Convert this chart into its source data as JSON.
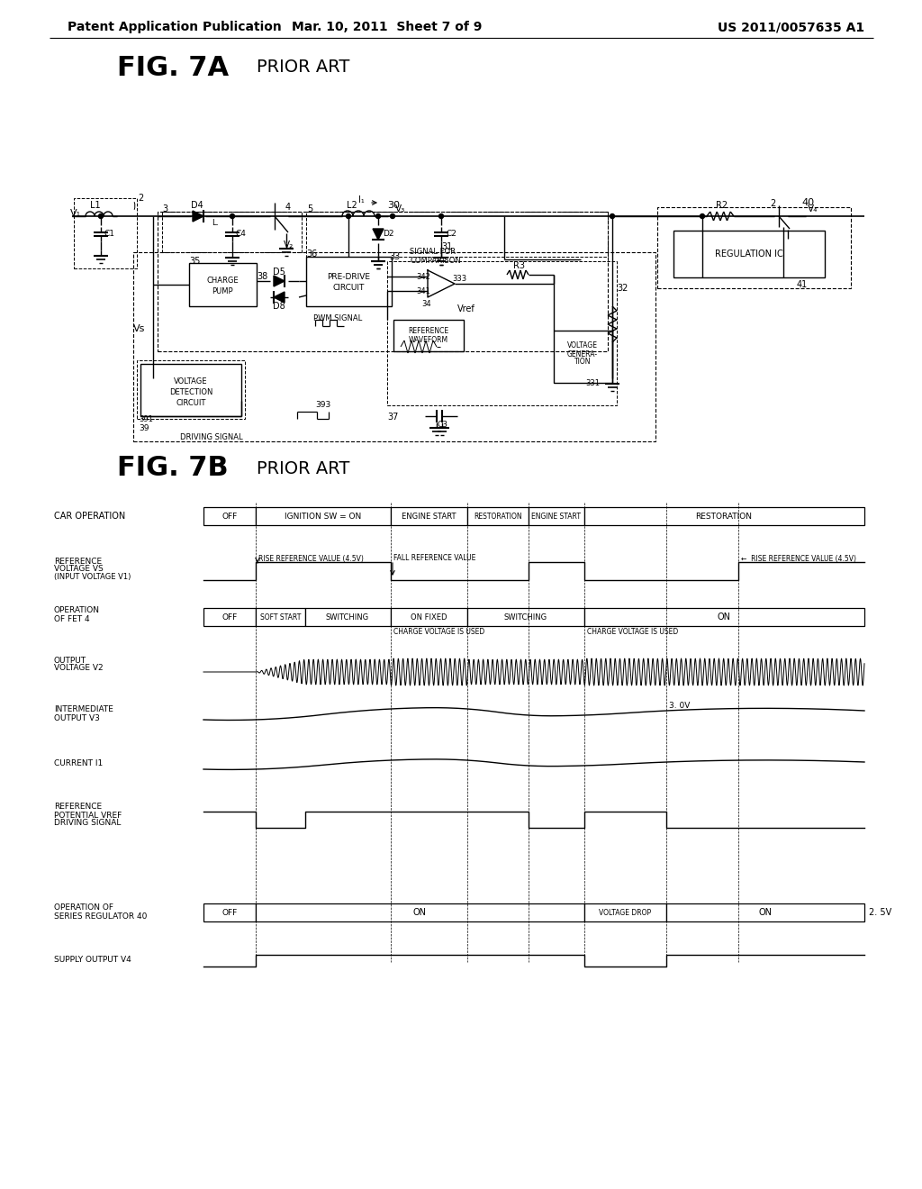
{
  "page_bg": "#ffffff",
  "header_left": "Patent Application Publication",
  "header_mid": "Mar. 10, 2011  Sheet 7 of 9",
  "header_right": "US 2011/0057635 A1",
  "fig7a_label": "FIG. 7A",
  "fig7a_sub": "PRIOR ART",
  "fig7b_label": "FIG. 7B",
  "fig7b_sub": "PRIOR ART",
  "text_color": "#000000",
  "line_color": "#000000"
}
